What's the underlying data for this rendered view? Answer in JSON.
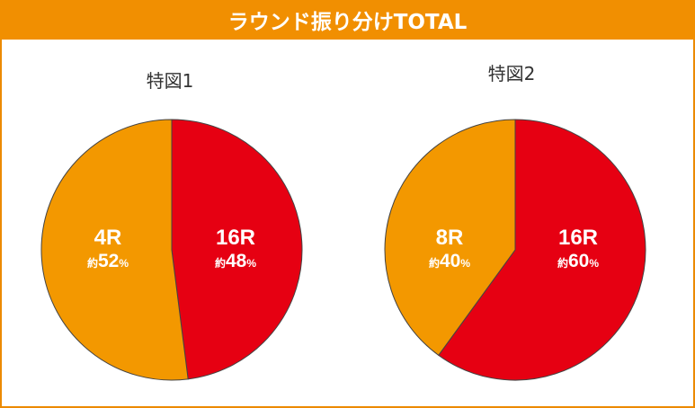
{
  "header": {
    "title": "ラウンド振り分けTOTAL"
  },
  "colors": {
    "orange": "#f39800",
    "red": "#e60012",
    "header": "#f18f01"
  },
  "chart_data": [
    {
      "type": "pie",
      "title": "特図1",
      "slices": [
        {
          "label": "16R",
          "prefix": "約",
          "value": 48,
          "unit": "%",
          "color": "#e60012"
        },
        {
          "label": "4R",
          "prefix": "約",
          "value": 52,
          "unit": "%",
          "color": "#f39800"
        }
      ]
    },
    {
      "type": "pie",
      "title": "特図2",
      "slices": [
        {
          "label": "16R",
          "prefix": "約",
          "value": 60,
          "unit": "%",
          "color": "#e60012"
        },
        {
          "label": "8R",
          "prefix": "約",
          "value": 40,
          "unit": "%",
          "color": "#f39800"
        }
      ]
    }
  ]
}
